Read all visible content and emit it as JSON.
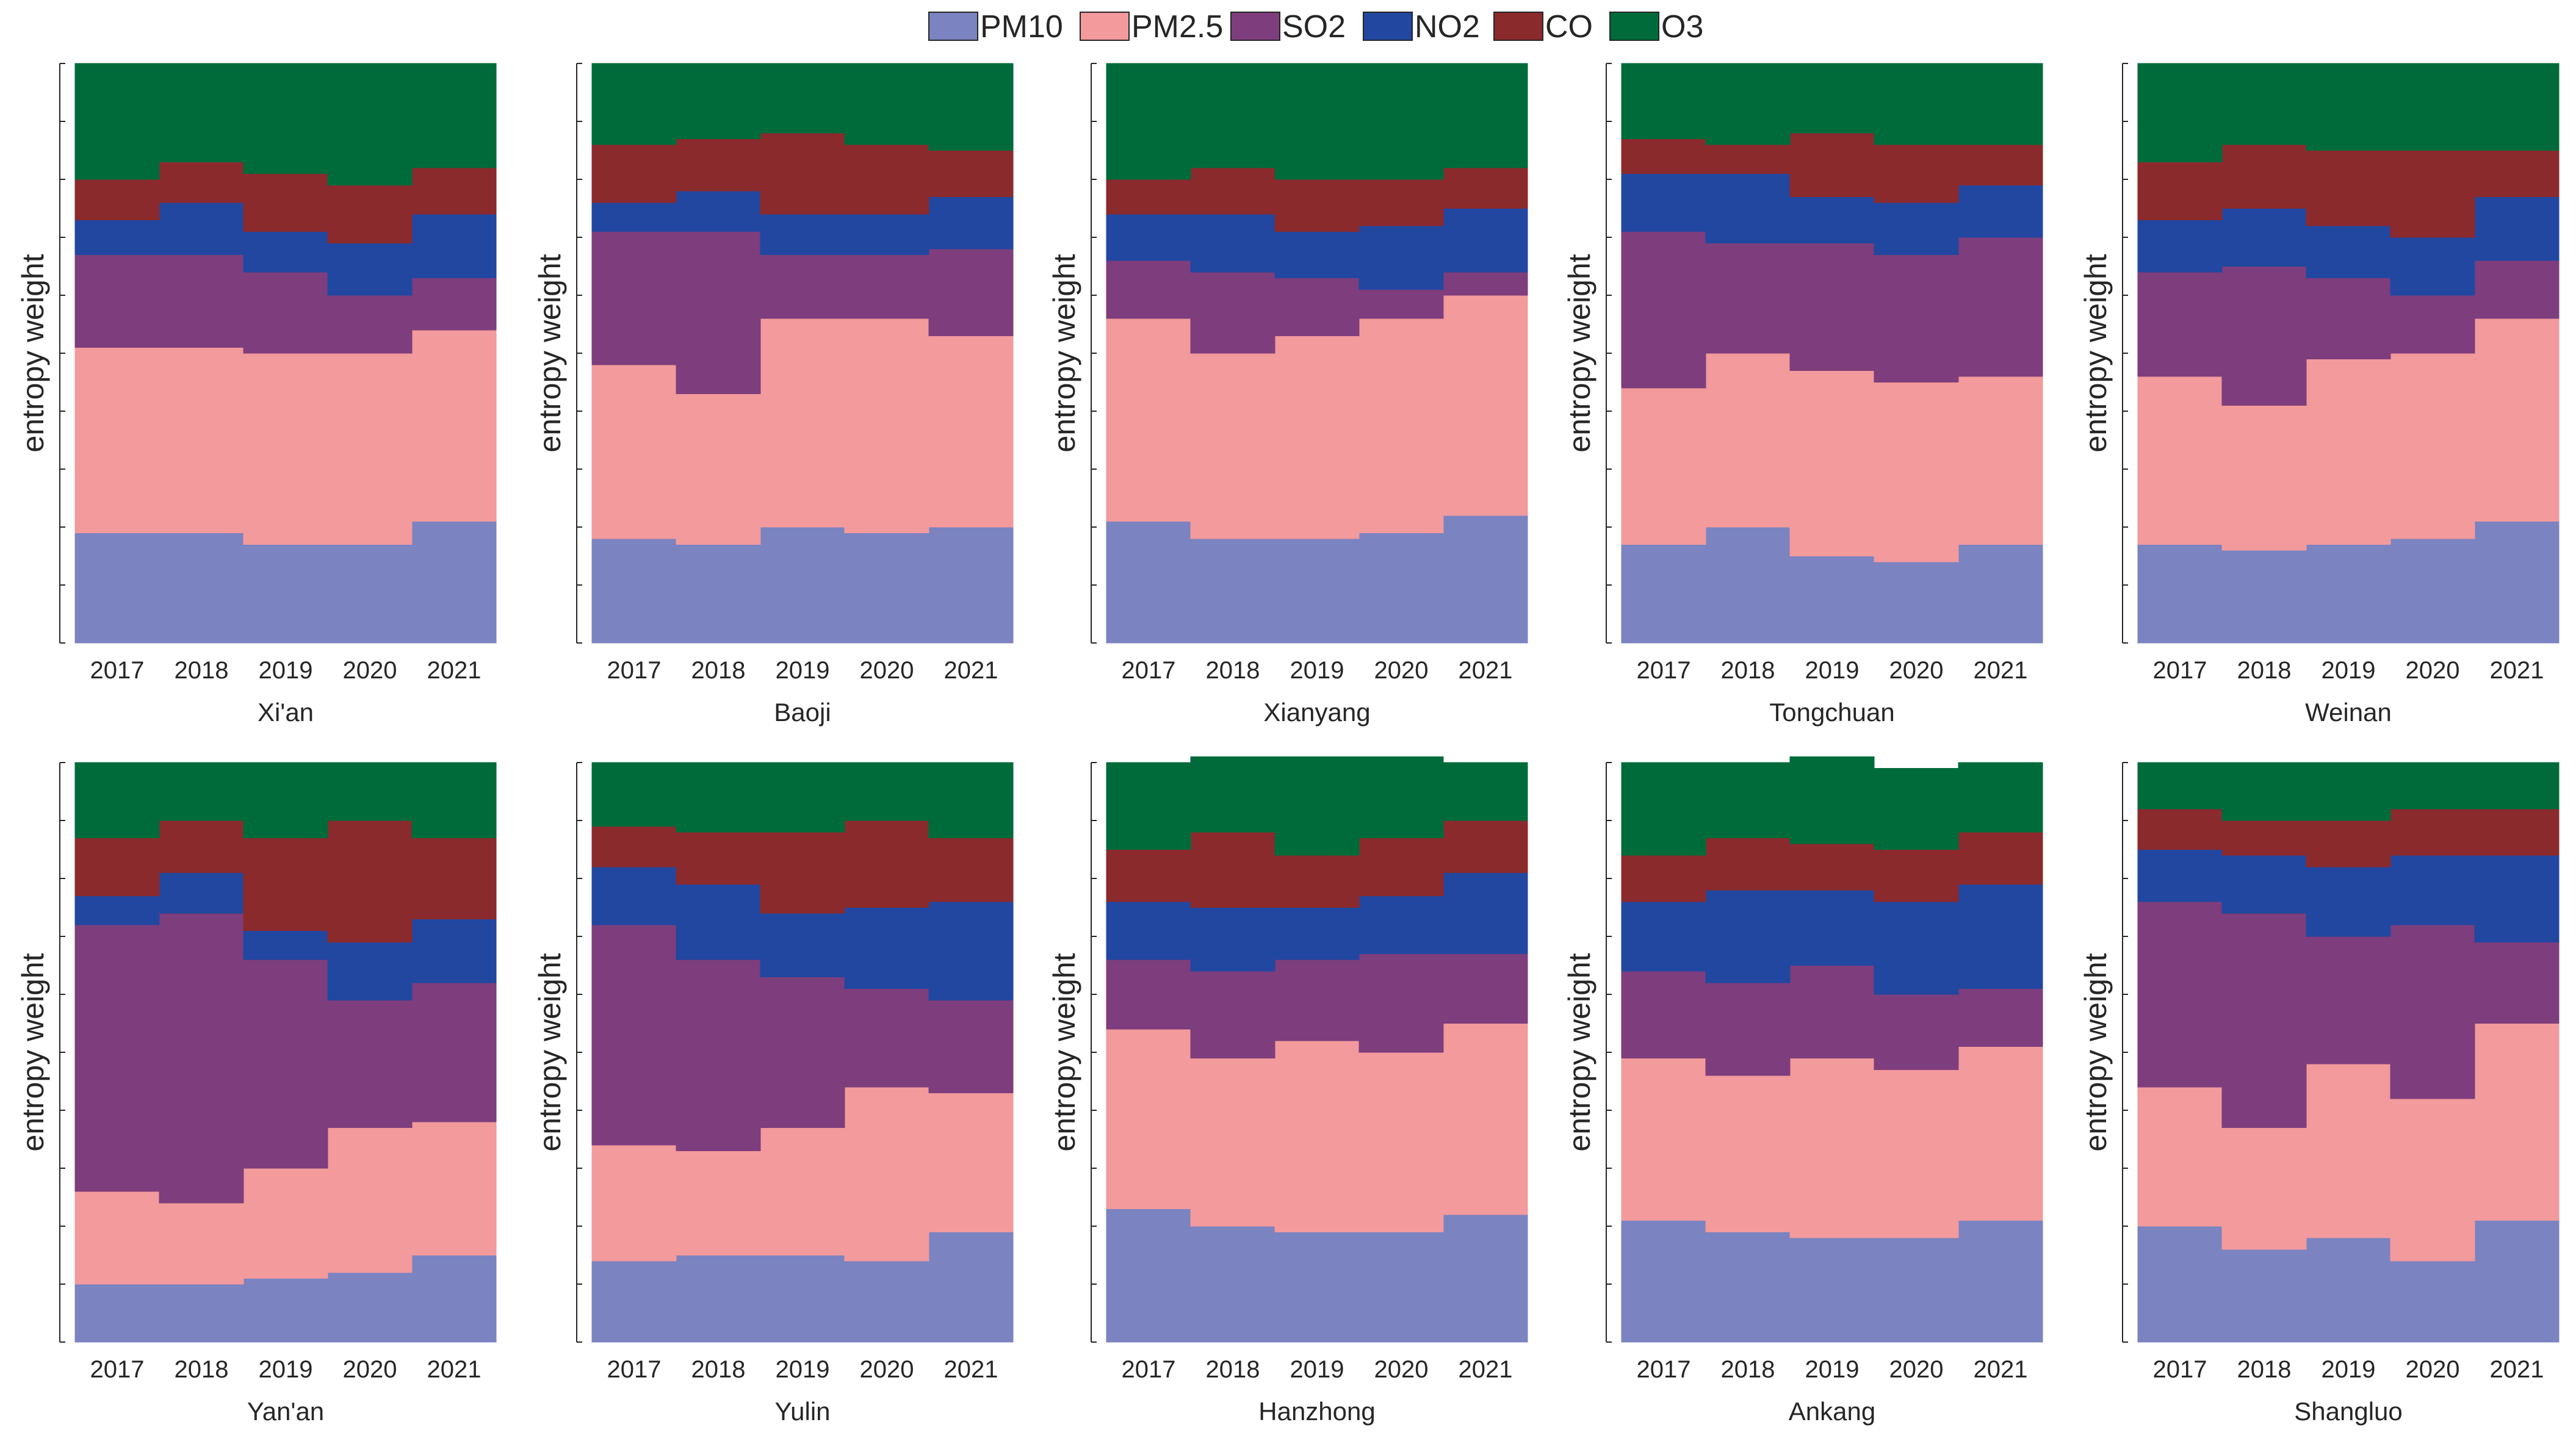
{
  "legend": {
    "labels": [
      "PM10",
      "PM2.5",
      "SO2",
      "NO2",
      "CO",
      "O3"
    ]
  },
  "colors": {
    "PM10": "#7b83c1",
    "PM2.5": "#f29a9c",
    "SO2": "#7e3d7c",
    "NO2": "#2247a0",
    "CO": "#8b2a2d",
    "O3": "#006b3a",
    "axis": "#262626",
    "text": "#262626"
  },
  "chart_data": [
    {
      "type": "area",
      "title": "Xi'an",
      "ylabel": "entropy weight",
      "categories": [
        "2017",
        "2018",
        "2019",
        "2020",
        "2021"
      ],
      "stacked": true,
      "ylim": [
        0,
        1
      ],
      "series": [
        {
          "name": "PM10",
          "values": [
            0.19,
            0.19,
            0.17,
            0.17,
            0.21
          ]
        },
        {
          "name": "PM2.5",
          "values": [
            0.32,
            0.32,
            0.33,
            0.33,
            0.33
          ]
        },
        {
          "name": "SO2",
          "values": [
            0.16,
            0.16,
            0.14,
            0.1,
            0.09
          ]
        },
        {
          "name": "NO2",
          "values": [
            0.06,
            0.09,
            0.07,
            0.09,
            0.11
          ]
        },
        {
          "name": "CO",
          "values": [
            0.07,
            0.07,
            0.1,
            0.1,
            0.08
          ]
        },
        {
          "name": "O3",
          "values": [
            0.2,
            0.17,
            0.19,
            0.21,
            0.18
          ]
        }
      ]
    },
    {
      "type": "area",
      "title": "Baoji",
      "ylabel": "entropy weight",
      "categories": [
        "2017",
        "2018",
        "2019",
        "2020",
        "2021"
      ],
      "stacked": true,
      "ylim": [
        0,
        1
      ],
      "series": [
        {
          "name": "PM10",
          "values": [
            0.18,
            0.17,
            0.2,
            0.19,
            0.2
          ]
        },
        {
          "name": "PM2.5",
          "values": [
            0.3,
            0.26,
            0.36,
            0.37,
            0.33
          ]
        },
        {
          "name": "SO2",
          "values": [
            0.23,
            0.28,
            0.11,
            0.11,
            0.15
          ]
        },
        {
          "name": "NO2",
          "values": [
            0.05,
            0.07,
            0.07,
            0.07,
            0.09
          ]
        },
        {
          "name": "CO",
          "values": [
            0.1,
            0.09,
            0.14,
            0.12,
            0.08
          ]
        },
        {
          "name": "O3",
          "values": [
            0.14,
            0.13,
            0.12,
            0.14,
            0.15
          ]
        }
      ]
    },
    {
      "type": "area",
      "title": "Xianyang",
      "ylabel": "entropy weight",
      "categories": [
        "2017",
        "2018",
        "2019",
        "2020",
        "2021"
      ],
      "stacked": true,
      "ylim": [
        0,
        1
      ],
      "series": [
        {
          "name": "PM10",
          "values": [
            0.21,
            0.18,
            0.18,
            0.19,
            0.22
          ]
        },
        {
          "name": "PM2.5",
          "values": [
            0.35,
            0.32,
            0.35,
            0.37,
            0.38
          ]
        },
        {
          "name": "SO2",
          "values": [
            0.1,
            0.14,
            0.1,
            0.05,
            0.04
          ]
        },
        {
          "name": "NO2",
          "values": [
            0.08,
            0.1,
            0.08,
            0.11,
            0.11
          ]
        },
        {
          "name": "CO",
          "values": [
            0.06,
            0.08,
            0.09,
            0.08,
            0.07
          ]
        },
        {
          "name": "O3",
          "values": [
            0.2,
            0.18,
            0.2,
            0.2,
            0.18
          ]
        }
      ]
    },
    {
      "type": "area",
      "title": "Tongchuan",
      "ylabel": "entropy weight",
      "categories": [
        "2017",
        "2018",
        "2019",
        "2020",
        "2021"
      ],
      "stacked": true,
      "ylim": [
        0,
        1
      ],
      "series": [
        {
          "name": "PM10",
          "values": [
            0.17,
            0.2,
            0.15,
            0.14,
            0.17
          ]
        },
        {
          "name": "PM2.5",
          "values": [
            0.27,
            0.3,
            0.32,
            0.31,
            0.29
          ]
        },
        {
          "name": "SO2",
          "values": [
            0.27,
            0.19,
            0.22,
            0.22,
            0.24
          ]
        },
        {
          "name": "NO2",
          "values": [
            0.1,
            0.12,
            0.08,
            0.09,
            0.09
          ]
        },
        {
          "name": "CO",
          "values": [
            0.06,
            0.05,
            0.11,
            0.1,
            0.07
          ]
        },
        {
          "name": "O3",
          "values": [
            0.13,
            0.14,
            0.12,
            0.14,
            0.14
          ]
        }
      ]
    },
    {
      "type": "area",
      "title": "Weinan",
      "ylabel": "entropy weight",
      "categories": [
        "2017",
        "2018",
        "2019",
        "2020",
        "2021"
      ],
      "stacked": true,
      "ylim": [
        0,
        1
      ],
      "series": [
        {
          "name": "PM10",
          "values": [
            0.17,
            0.16,
            0.17,
            0.18,
            0.21
          ]
        },
        {
          "name": "PM2.5",
          "values": [
            0.29,
            0.25,
            0.32,
            0.32,
            0.35
          ]
        },
        {
          "name": "SO2",
          "values": [
            0.18,
            0.24,
            0.14,
            0.1,
            0.1
          ]
        },
        {
          "name": "NO2",
          "values": [
            0.09,
            0.1,
            0.09,
            0.1,
            0.11
          ]
        },
        {
          "name": "CO",
          "values": [
            0.1,
            0.11,
            0.13,
            0.15,
            0.08
          ]
        },
        {
          "name": "O3",
          "values": [
            0.17,
            0.14,
            0.15,
            0.15,
            0.15
          ]
        }
      ]
    },
    {
      "type": "area",
      "title": "Yan'an",
      "ylabel": "entropy weight",
      "categories": [
        "2017",
        "2018",
        "2019",
        "2020",
        "2021"
      ],
      "stacked": true,
      "ylim": [
        0,
        1
      ],
      "series": [
        {
          "name": "PM10",
          "values": [
            0.1,
            0.1,
            0.11,
            0.12,
            0.15
          ]
        },
        {
          "name": "PM2.5",
          "values": [
            0.16,
            0.14,
            0.19,
            0.25,
            0.23
          ]
        },
        {
          "name": "SO2",
          "values": [
            0.46,
            0.5,
            0.36,
            0.22,
            0.24
          ]
        },
        {
          "name": "NO2",
          "values": [
            0.05,
            0.07,
            0.05,
            0.1,
            0.11
          ]
        },
        {
          "name": "CO",
          "values": [
            0.1,
            0.09,
            0.16,
            0.21,
            0.14
          ]
        },
        {
          "name": "O3",
          "values": [
            0.13,
            0.1,
            0.13,
            0.1,
            0.13
          ]
        }
      ]
    },
    {
      "type": "area",
      "title": "Yulin",
      "ylabel": "entropy weight",
      "categories": [
        "2017",
        "2018",
        "2019",
        "2020",
        "2021"
      ],
      "stacked": true,
      "ylim": [
        0,
        1
      ],
      "series": [
        {
          "name": "PM10",
          "values": [
            0.14,
            0.15,
            0.15,
            0.14,
            0.19
          ]
        },
        {
          "name": "PM2.5",
          "values": [
            0.2,
            0.18,
            0.22,
            0.3,
            0.24
          ]
        },
        {
          "name": "SO2",
          "values": [
            0.38,
            0.33,
            0.26,
            0.17,
            0.16
          ]
        },
        {
          "name": "NO2",
          "values": [
            0.1,
            0.13,
            0.11,
            0.14,
            0.17
          ]
        },
        {
          "name": "CO",
          "values": [
            0.07,
            0.09,
            0.14,
            0.15,
            0.11
          ]
        },
        {
          "name": "O3",
          "values": [
            0.11,
            0.12,
            0.12,
            0.1,
            0.13
          ]
        }
      ]
    },
    {
      "type": "area",
      "title": "Hanzhong",
      "ylabel": "entropy weight",
      "categories": [
        "2017",
        "2018",
        "2019",
        "2020",
        "2021"
      ],
      "stacked": true,
      "ylim": [
        0,
        1
      ],
      "series": [
        {
          "name": "PM10",
          "values": [
            0.23,
            0.2,
            0.19,
            0.19,
            0.22
          ]
        },
        {
          "name": "PM2.5",
          "values": [
            0.31,
            0.29,
            0.33,
            0.31,
            0.33
          ]
        },
        {
          "name": "SO2",
          "values": [
            0.12,
            0.15,
            0.14,
            0.17,
            0.12
          ]
        },
        {
          "name": "NO2",
          "values": [
            0.1,
            0.11,
            0.09,
            0.1,
            0.14
          ]
        },
        {
          "name": "CO",
          "values": [
            0.09,
            0.13,
            0.09,
            0.1,
            0.09
          ]
        },
        {
          "name": "O3",
          "values": [
            0.15,
            0.13,
            0.17,
            0.14,
            0.1
          ]
        }
      ]
    },
    {
      "type": "area",
      "title": "Ankang",
      "ylabel": "entropy weight",
      "categories": [
        "2017",
        "2018",
        "2019",
        "2020",
        "2021"
      ],
      "stacked": true,
      "ylim": [
        0,
        1
      ],
      "series": [
        {
          "name": "PM10",
          "values": [
            0.21,
            0.19,
            0.18,
            0.18,
            0.21
          ]
        },
        {
          "name": "PM2.5",
          "values": [
            0.28,
            0.27,
            0.31,
            0.29,
            0.3
          ]
        },
        {
          "name": "SO2",
          "values": [
            0.15,
            0.16,
            0.16,
            0.13,
            0.1
          ]
        },
        {
          "name": "NO2",
          "values": [
            0.12,
            0.16,
            0.13,
            0.16,
            0.18
          ]
        },
        {
          "name": "CO",
          "values": [
            0.08,
            0.09,
            0.08,
            0.09,
            0.09
          ]
        },
        {
          "name": "O3",
          "values": [
            0.16,
            0.13,
            0.15,
            0.14,
            0.12
          ]
        }
      ]
    },
    {
      "type": "area",
      "title": "Shangluo",
      "ylabel": "entropy weight",
      "categories": [
        "2017",
        "2018",
        "2019",
        "2020",
        "2021"
      ],
      "stacked": true,
      "ylim": [
        0,
        1
      ],
      "series": [
        {
          "name": "PM10",
          "values": [
            0.2,
            0.16,
            0.18,
            0.14,
            0.21
          ]
        },
        {
          "name": "PM2.5",
          "values": [
            0.24,
            0.21,
            0.3,
            0.28,
            0.34
          ]
        },
        {
          "name": "SO2",
          "values": [
            0.32,
            0.37,
            0.22,
            0.3,
            0.14
          ]
        },
        {
          "name": "NO2",
          "values": [
            0.09,
            0.1,
            0.12,
            0.12,
            0.15
          ]
        },
        {
          "name": "CO",
          "values": [
            0.07,
            0.06,
            0.08,
            0.08,
            0.08
          ]
        },
        {
          "name": "O3",
          "values": [
            0.08,
            0.1,
            0.1,
            0.08,
            0.08
          ]
        }
      ]
    }
  ]
}
